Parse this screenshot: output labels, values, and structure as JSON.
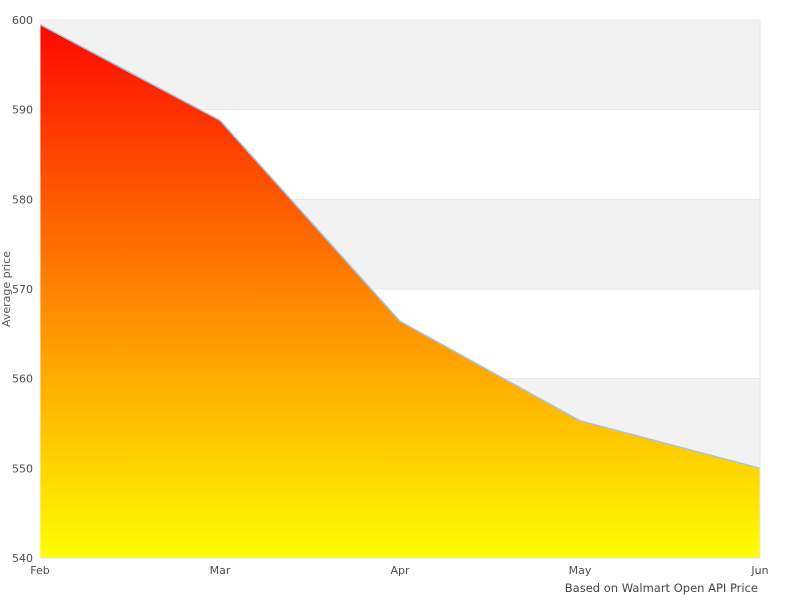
{
  "chart_data": {
    "type": "area",
    "categories": [
      "Feb",
      "Mar",
      "Apr",
      "May",
      "Jun"
    ],
    "values": [
      599.5,
      588.8,
      566.4,
      555.3,
      550
    ],
    "title": "",
    "xlabel": "",
    "ylabel": "Average price",
    "ylim": [
      540,
      600
    ],
    "ytick_step": 10,
    "yticks": [
      540,
      550,
      560,
      570,
      580,
      590,
      600
    ],
    "caption": "Based on Walmart Open API Price",
    "legend": "none",
    "grid": "alternating horizontal bands, gray band starts at top (590-600)",
    "colors": {
      "gradient_top": "#ff0800",
      "gradient_bottom": "#ffff00",
      "line": "#a6c3e3",
      "band_gray": "#f2f2f2",
      "axis_border": "#e6e6e6",
      "left_axis_overlay": "#f0f0f0",
      "tick_label": "#4d4d4d",
      "caption_text": "#444444"
    }
  }
}
